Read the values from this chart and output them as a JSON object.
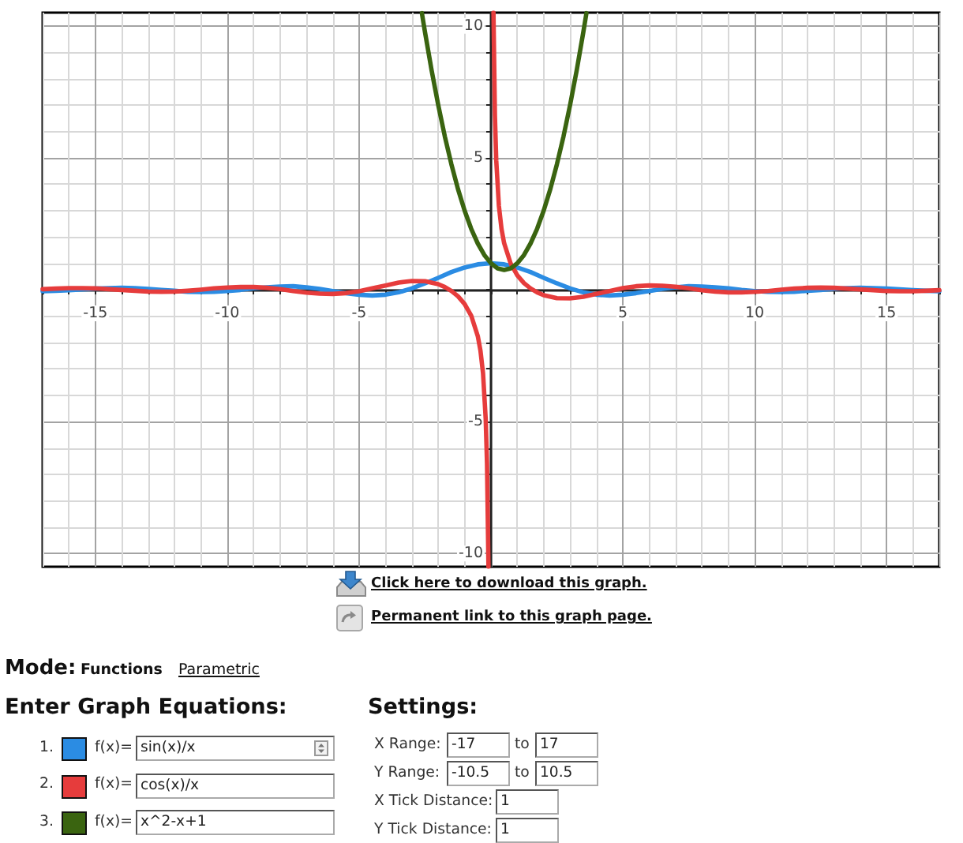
{
  "chart_data": {
    "type": "line",
    "series": [
      {
        "color": "#2b8ce3",
        "x": [
          -17,
          -16.5,
          -16,
          -15.5,
          -15,
          -14.5,
          -14,
          -13.5,
          -13,
          -12.5,
          -12,
          -11.5,
          -11,
          -10.5,
          -10,
          -9.5,
          -9,
          -8.5,
          -8,
          -7.5,
          -7,
          -6.5,
          -6,
          -5.5,
          -5,
          -4.5,
          -4,
          -3.5,
          -3,
          -2.5,
          -2,
          -1.5,
          -1,
          -0.5,
          0,
          0.5,
          1,
          1.5,
          2,
          2.5,
          3,
          3.5,
          4,
          4.5,
          5,
          5.5,
          6,
          6.5,
          7,
          7.5,
          8,
          8.5,
          9,
          9.5,
          10,
          10.5,
          11,
          11.5,
          12,
          12.5,
          13,
          13.5,
          14,
          14.5,
          15,
          15.5,
          16,
          16.5,
          17
        ],
        "values": [
          -0.06,
          -0.04,
          -0.02,
          0.01,
          0.04,
          0.06,
          0.07,
          0.06,
          0.03,
          -0.01,
          -0.04,
          -0.08,
          -0.09,
          -0.08,
          -0.05,
          -0.01,
          0.05,
          0.09,
          0.12,
          0.13,
          0.09,
          0.03,
          -0.05,
          -0.13,
          -0.19,
          -0.22,
          -0.19,
          -0.1,
          0.05,
          0.24,
          0.45,
          0.67,
          0.84,
          0.96,
          1,
          0.96,
          0.84,
          0.67,
          0.45,
          0.24,
          0.05,
          -0.1,
          -0.19,
          -0.22,
          -0.19,
          -0.13,
          -0.05,
          0.03,
          0.09,
          0.13,
          0.12,
          0.09,
          0.05,
          -0.01,
          -0.05,
          -0.08,
          -0.09,
          -0.08,
          -0.04,
          -0.01,
          0.03,
          0.06,
          0.07,
          0.06,
          0.04,
          0.01,
          -0.02,
          -0.04,
          -0.06
        ]
      },
      {
        "color": "#e63c3c",
        "x": [
          -17,
          -16.5,
          -16,
          -15.5,
          -15,
          -14.5,
          -14,
          -13.5,
          -13,
          -12.5,
          -12,
          -11.5,
          -11,
          -10.5,
          -10,
          -9.5,
          -9,
          -8.5,
          -8,
          -7.5,
          -7,
          -6.5,
          -6,
          -5.5,
          -5,
          -4.5,
          -4,
          -3.5,
          -3,
          -2.5,
          -2,
          -1.75,
          -1.5,
          -1.25,
          -1,
          -0.75,
          -0.5,
          -0.4,
          -0.3,
          -0.2,
          -0.15,
          -0.095,
          0,
          0.095,
          0.15,
          0.2,
          0.3,
          0.4,
          0.5,
          0.75,
          1,
          1.25,
          1.5,
          1.75,
          2,
          2.5,
          3,
          3.5,
          4,
          4.5,
          5,
          5.5,
          6,
          6.5,
          7,
          7.5,
          8,
          8.5,
          9,
          9.5,
          10,
          10.5,
          11,
          11.5,
          12,
          12.5,
          13,
          13.5,
          14,
          14.5,
          15,
          15.5,
          16,
          16.5,
          17
        ],
        "values": [
          0.02,
          0.04,
          0.06,
          0.06,
          0.05,
          0.02,
          -0.01,
          -0.04,
          -0.07,
          -0.08,
          -0.07,
          -0.04,
          0,
          0.05,
          0.08,
          0.1,
          0.1,
          0.07,
          0.02,
          -0.05,
          -0.11,
          -0.15,
          -0.16,
          -0.13,
          -0.06,
          0.05,
          0.16,
          0.27,
          0.33,
          0.32,
          0.21,
          0.1,
          -0.05,
          -0.25,
          -0.54,
          -0.98,
          -1.76,
          -2.3,
          -3.18,
          -4.9,
          -6.59,
          -10.5,
          null,
          10.5,
          6.59,
          4.9,
          3.18,
          2.3,
          1.76,
          0.98,
          0.54,
          0.25,
          0.05,
          -0.1,
          -0.21,
          -0.32,
          -0.33,
          -0.27,
          -0.16,
          -0.05,
          0.06,
          0.13,
          0.16,
          0.15,
          0.11,
          0.05,
          -0.02,
          -0.07,
          -0.1,
          -0.1,
          -0.08,
          -0.05,
          0,
          0.04,
          0.07,
          0.08,
          0.07,
          0.04,
          0.01,
          -0.02,
          -0.05,
          -0.06,
          -0.06,
          -0.04,
          -0.02
        ]
      },
      {
        "color": "#3a6410",
        "x": [
          -2.62,
          -2.5,
          -2.25,
          -2,
          -1.75,
          -1.5,
          -1.25,
          -1,
          -0.75,
          -0.5,
          -0.25,
          0,
          0.25,
          0.5,
          0.75,
          1,
          1.25,
          1.5,
          1.75,
          2,
          2.25,
          2.5,
          2.75,
          3,
          3.25,
          3.5,
          3.62
        ],
        "values": [
          10.48,
          9.75,
          8.31,
          7,
          5.81,
          4.75,
          3.81,
          3,
          2.31,
          1.75,
          1.31,
          1,
          0.81,
          0.75,
          0.81,
          1,
          1.31,
          1.75,
          2.31,
          3,
          3.81,
          4.75,
          5.81,
          7,
          8.31,
          9.75,
          10.48
        ]
      }
    ],
    "xlim": [
      -17,
      17
    ],
    "ylim": [
      -10.5,
      10.5
    ],
    "xticks": [
      {
        "value": -17,
        "label": null
      },
      {
        "value": -16,
        "label": null
      },
      -15,
      {
        "value": -14,
        "label": null
      },
      {
        "value": -13,
        "label": null
      },
      {
        "value": -12,
        "label": null
      },
      {
        "value": -11,
        "label": null
      },
      -10,
      {
        "value": -9,
        "label": null
      },
      {
        "value": -8,
        "label": null
      },
      {
        "value": -7,
        "label": null
      },
      {
        "value": -6,
        "label": null
      },
      -5,
      {
        "value": -4,
        "label": null
      },
      {
        "value": -3,
        "label": null
      },
      {
        "value": -2,
        "label": null
      },
      {
        "value": -1,
        "label": null
      },
      {
        "value": 0,
        "label": null
      },
      {
        "value": 1,
        "label": null
      },
      {
        "value": 2,
        "label": null
      },
      {
        "value": 3,
        "label": null
      },
      {
        "value": 4,
        "label": null
      },
      5,
      {
        "value": 6,
        "label": null
      },
      {
        "value": 7,
        "label": null
      },
      {
        "value": 8,
        "label": null
      },
      {
        "value": 9,
        "label": null
      },
      10,
      {
        "value": 11,
        "label": null
      },
      {
        "value": 12,
        "label": null
      },
      {
        "value": 13,
        "label": null
      },
      {
        "value": 14,
        "label": null
      },
      15,
      {
        "value": 16,
        "label": null
      },
      {
        "value": 17,
        "label": null
      }
    ],
    "yticks": [
      -10,
      {
        "value": -9,
        "label": null
      },
      {
        "value": -8,
        "label": null
      },
      {
        "value": -7,
        "label": null
      },
      {
        "value": -6,
        "label": null
      },
      -5,
      {
        "value": -4,
        "label": null
      },
      {
        "value": -3,
        "label": null
      },
      {
        "value": -2,
        "label": null
      },
      {
        "value": -1,
        "label": null
      },
      {
        "value": 0,
        "label": null
      },
      {
        "value": 1,
        "label": null
      },
      {
        "value": 2,
        "label": null
      },
      {
        "value": 3,
        "label": null
      },
      {
        "value": 4,
        "label": null
      },
      5,
      {
        "value": 6,
        "label": null
      },
      {
        "value": 7,
        "label": null
      },
      {
        "value": 8,
        "label": null
      },
      {
        "value": 9,
        "label": null
      },
      10
    ],
    "grid": true,
    "marker": "none",
    "annotations": [
      "Click here to download this graph.",
      "Permanent link to this graph page.",
      "Mode:",
      "Functions",
      "Parametric",
      "Enter Graph Equations:",
      "Settings:",
      "1.",
      "f(x)=",
      "sin(x)/x",
      "2.",
      "f(x)=",
      "cos(x)/x",
      "3.",
      "f(x)=",
      "x^2-x+1",
      "X Range:",
      "-17",
      "to",
      "17",
      "Y Range:",
      "-10.5",
      "to",
      "10.5",
      "X Tick Distance:",
      "1",
      "Y Tick Distance:",
      "1"
    ]
  }
}
